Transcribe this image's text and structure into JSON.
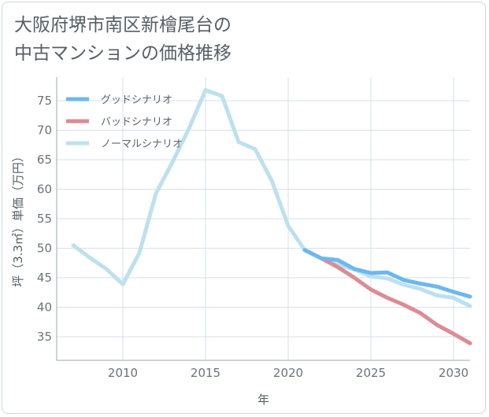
{
  "title_lines": [
    "大阪府堺市南区新檜尾台の",
    "中古マンションの価格推移"
  ],
  "colors": {
    "good": "#6cb8ee",
    "bad": "#dc8c94",
    "normal": "#bde0ee",
    "grid": "#d6e1e8",
    "axis": "#9aa8b2"
  },
  "chart_data": {
    "type": "line",
    "xlabel": "年",
    "ylabel": "坪（3.3㎡）単価（万円）",
    "xlim": [
      2006,
      2031
    ],
    "ylim": [
      31,
      79
    ],
    "xticks": [
      2010,
      2015,
      2020,
      2025,
      2030
    ],
    "yticks": [
      35,
      40,
      45,
      50,
      55,
      60,
      65,
      70,
      75
    ],
    "grid": true,
    "legend_position": "top-left",
    "series": [
      {
        "name": "グッドシナリオ",
        "color_key": "good",
        "x": [
          2021,
          2022,
          2023,
          2024,
          2025,
          2026,
          2027,
          2028,
          2029,
          2030,
          2031
        ],
        "y": [
          49.7,
          48.3,
          48.0,
          46.5,
          45.8,
          45.9,
          44.6,
          44.0,
          43.5,
          42.6,
          41.8
        ]
      },
      {
        "name": "バッドシナリオ",
        "color_key": "bad",
        "x": [
          2021,
          2022,
          2023,
          2024,
          2025,
          2026,
          2027,
          2028,
          2029,
          2030,
          2031
        ],
        "y": [
          49.7,
          48.3,
          46.8,
          45.0,
          43.0,
          41.6,
          40.4,
          39.0,
          37.0,
          35.5,
          33.9
        ]
      },
      {
        "name": "ノーマルシナリオ",
        "color_key": "normal",
        "x": [
          2007,
          2008,
          2009,
          2010,
          2011,
          2012,
          2013,
          2014,
          2015,
          2016,
          2017,
          2018,
          2019,
          2020,
          2021,
          2022,
          2023,
          2024,
          2025,
          2026,
          2027,
          2028,
          2029,
          2030,
          2031
        ],
        "y": [
          50.5,
          48.4,
          46.5,
          43.9,
          49.2,
          59.3,
          64.6,
          70.3,
          76.8,
          75.8,
          68.0,
          66.8,
          61.5,
          53.8,
          49.7,
          48.3,
          47.2,
          46.4,
          45.2,
          44.9,
          43.8,
          43.1,
          42.0,
          41.6,
          40.2
        ]
      }
    ]
  }
}
